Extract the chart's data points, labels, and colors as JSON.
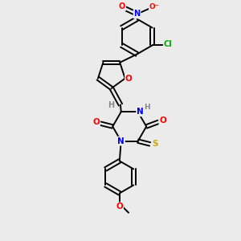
{
  "bg_color": "#ebebeb",
  "atom_colors": {
    "C": "#000000",
    "H": "#888888",
    "N": "#0000ff",
    "O": "#ff0000",
    "S": "#ccaa00",
    "Cl": "#00aa00"
  },
  "bond_color": "#000000",
  "bond_width": 1.4,
  "dbo": 0.032
}
